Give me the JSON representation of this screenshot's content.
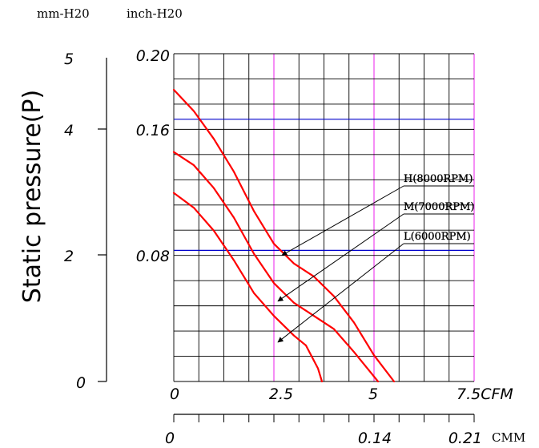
{
  "chart_data": {
    "type": "line",
    "units": {
      "mm_h2o": "mm-H20",
      "inch_h2o": "inch-H20"
    },
    "ylabel": "Static pressure(P)",
    "y_mm_ticks": [
      "5",
      "4",
      "2",
      "0"
    ],
    "y_inch_ticks": [
      "0.20",
      "0.16",
      "0.08"
    ],
    "x_cfm_ticks": [
      "0",
      "2.5",
      "5",
      "7.5CFM"
    ],
    "x_cmm_ticks": [
      "0",
      "0.14",
      "0.21"
    ],
    "x_cmm_unit": "CMM",
    "xlim": [
      0,
      7.5
    ],
    "ylim": [
      0,
      0.2
    ],
    "grid": true,
    "colors": {
      "curve": "#ff0000",
      "grid": "#000000",
      "major_h": "#0000cc",
      "major_v": "#ee44ee"
    },
    "series": [
      {
        "name": "H(8000RPM)",
        "x": [
          0,
          0.5,
          1.0,
          1.5,
          2.0,
          2.5,
          3.0,
          3.5,
          4.0,
          4.5,
          5.0,
          5.5
        ],
        "y": [
          0.178,
          0.165,
          0.148,
          0.128,
          0.104,
          0.084,
          0.072,
          0.064,
          0.052,
          0.036,
          0.016,
          0
        ]
      },
      {
        "name": "M(7000RPM)",
        "x": [
          0,
          0.5,
          1.0,
          1.5,
          2.0,
          2.5,
          3.0,
          3.5,
          4.0,
          4.5,
          4.9,
          5.1
        ],
        "y": [
          0.14,
          0.132,
          0.118,
          0.1,
          0.078,
          0.06,
          0.048,
          0.04,
          0.032,
          0.018,
          0.006,
          0
        ]
      },
      {
        "name": "L(6000RPM)",
        "x": [
          0,
          0.5,
          1.0,
          1.5,
          2.0,
          2.5,
          3.0,
          3.3,
          3.6,
          3.7
        ],
        "y": [
          0.115,
          0.106,
          0.092,
          0.074,
          0.054,
          0.04,
          0.028,
          0.022,
          0.008,
          0
        ]
      }
    ],
    "annotations": [
      {
        "label": "H(8000RPM)",
        "target_x": 2.7,
        "target_y": 0.077
      },
      {
        "label": "M(7000RPM)",
        "target_x": 2.6,
        "target_y": 0.049
      },
      {
        "label": "L(6000RPM)",
        "target_x": 2.6,
        "target_y": 0.024
      }
    ]
  }
}
